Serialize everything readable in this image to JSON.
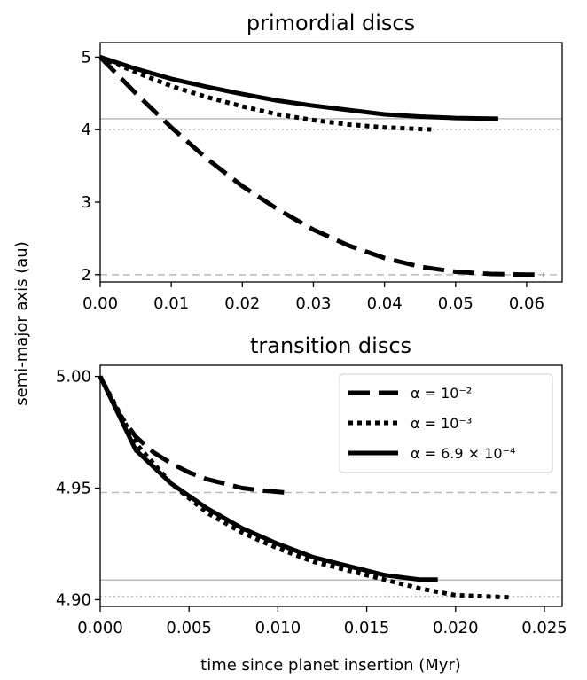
{
  "figure": {
    "ylabel": "semi-major axis (au)",
    "xlabel": "time since planet insertion (Myr)"
  },
  "chart_data": [
    {
      "type": "line",
      "title": "primordial discs",
      "xlabel": "",
      "ylabel": "semi-major axis (au)",
      "xlim": [
        0.0,
        0.065
      ],
      "ylim": [
        1.9,
        5.2
      ],
      "x_ticks": [
        0.0,
        0.01,
        0.02,
        0.03,
        0.04,
        0.05,
        0.06
      ],
      "x_tick_labels": [
        "0.00",
        "0.01",
        "0.02",
        "0.03",
        "0.04",
        "0.05",
        "0.06"
      ],
      "y_ticks": [
        2,
        3,
        4,
        5
      ],
      "y_tick_labels": [
        "2",
        "3",
        "4",
        "5"
      ],
      "grid": false,
      "series": [
        {
          "style": "dashed",
          "x": [
            0,
            0.005,
            0.01,
            0.015,
            0.02,
            0.025,
            0.03,
            0.035,
            0.04,
            0.045,
            0.05,
            0.055,
            0.06,
            0.0625
          ],
          "values": [
            5.0,
            4.5,
            4.03,
            3.6,
            3.22,
            2.9,
            2.62,
            2.4,
            2.23,
            2.11,
            2.04,
            2.01,
            2.0,
            2.0
          ]
        },
        {
          "style": "dotted",
          "x": [
            0,
            0.005,
            0.01,
            0.015,
            0.02,
            0.025,
            0.03,
            0.035,
            0.04,
            0.047
          ],
          "values": [
            5.0,
            4.79,
            4.6,
            4.45,
            4.32,
            4.21,
            4.13,
            4.07,
            4.03,
            4.0
          ]
        },
        {
          "style": "solid",
          "x": [
            0,
            0.005,
            0.01,
            0.015,
            0.02,
            0.025,
            0.03,
            0.035,
            0.04,
            0.045,
            0.05,
            0.056
          ],
          "values": [
            5.0,
            4.84,
            4.7,
            4.59,
            4.49,
            4.4,
            4.33,
            4.27,
            4.21,
            4.18,
            4.16,
            4.15
          ]
        }
      ],
      "reference_lines": [
        {
          "y": 4.15,
          "style": "solid",
          "color": "#bbbbbb"
        },
        {
          "y": 4.0,
          "style": "dotted",
          "color": "#bbbbbb"
        },
        {
          "y": 2.0,
          "style": "dashed",
          "color": "#bbbbbb"
        }
      ]
    },
    {
      "type": "line",
      "title": "transition discs",
      "xlabel": "time since planet insertion (Myr)",
      "ylabel": "semi-major axis (au)",
      "xlim": [
        0.0,
        0.026
      ],
      "ylim": [
        4.897,
        5.005
      ],
      "x_ticks": [
        0.0,
        0.005,
        0.01,
        0.015,
        0.02,
        0.025
      ],
      "x_tick_labels": [
        "0.000",
        "0.005",
        "0.010",
        "0.015",
        "0.020",
        "0.025"
      ],
      "y_ticks": [
        4.9,
        4.95,
        5.0
      ],
      "y_tick_labels": [
        "4.90",
        "4.95",
        "5.00"
      ],
      "grid": false,
      "legend_position": "top-right",
      "series": [
        {
          "name": "α = 10⁻²",
          "style": "dashed",
          "x": [
            0,
            0.001,
            0.002,
            0.003,
            0.004,
            0.005,
            0.006,
            0.007,
            0.008,
            0.009,
            0.0105
          ],
          "values": [
            5.0,
            4.984,
            4.973,
            4.966,
            4.961,
            4.957,
            4.954,
            4.952,
            4.95,
            4.949,
            4.948
          ]
        },
        {
          "name": "α = 10⁻³",
          "style": "dotted",
          "x": [
            0,
            0.002,
            0.004,
            0.006,
            0.008,
            0.01,
            0.012,
            0.014,
            0.016,
            0.018,
            0.02,
            0.0232
          ],
          "values": [
            5.0,
            4.97,
            4.952,
            4.939,
            4.93,
            4.923,
            4.917,
            4.913,
            4.909,
            4.905,
            4.902,
            4.901
          ]
        },
        {
          "name": "α = 6.9 × 10⁻⁴",
          "style": "solid",
          "x": [
            0,
            0.002,
            0.004,
            0.006,
            0.008,
            0.01,
            0.012,
            0.014,
            0.016,
            0.018,
            0.019
          ],
          "values": [
            5.0,
            4.967,
            4.952,
            4.941,
            4.932,
            4.925,
            4.919,
            4.915,
            4.911,
            4.909,
            4.909
          ]
        }
      ],
      "reference_lines": [
        {
          "y": 4.948,
          "style": "dashed",
          "color": "#bbbbbb"
        },
        {
          "y": 4.9088,
          "style": "solid",
          "color": "#bbbbbb"
        },
        {
          "y": 4.9015,
          "style": "dotted",
          "color": "#bbbbbb"
        }
      ]
    }
  ]
}
